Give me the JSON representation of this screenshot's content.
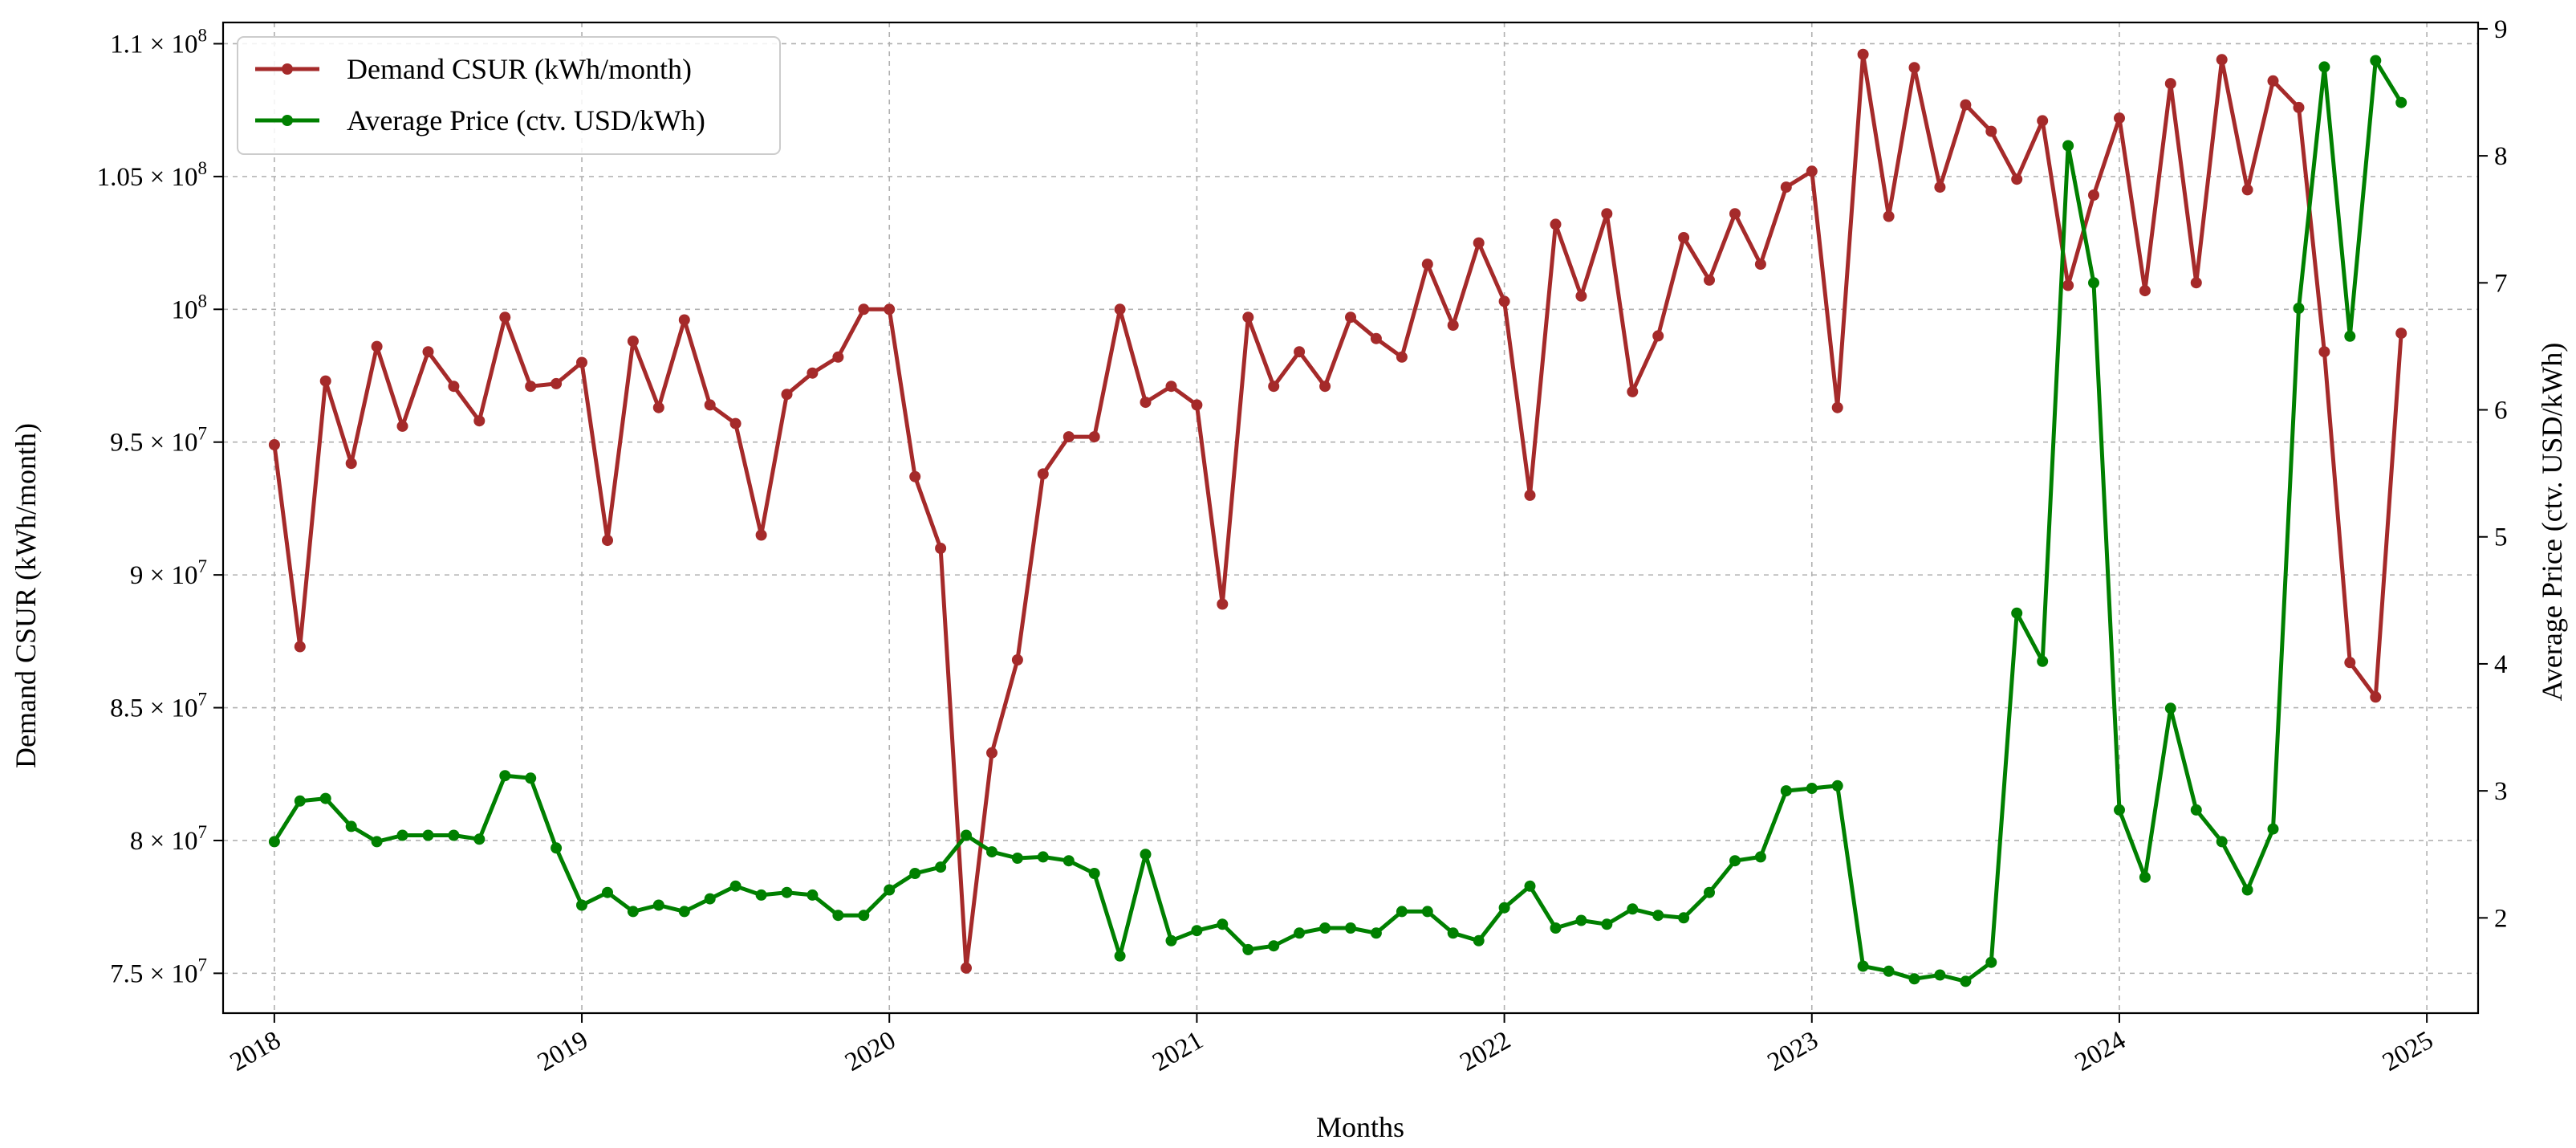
{
  "chart_data": {
    "type": "line",
    "xlabel": "Months",
    "ylabel": "Demand CSUR (kWh/month)",
    "ylabel_right": "Average Price (ctv. USD/kWh)",
    "grid": true,
    "legend_position": "top-left",
    "x_ticks": [
      "2018",
      "2019",
      "2020",
      "2021",
      "2022",
      "2023",
      "2024",
      "2025"
    ],
    "x_start": "2018-01",
    "x_end": "2024-12",
    "xlim_months": [
      -2,
      86
    ],
    "y_left_ticks": [
      {
        "value": 75000000,
        "mantissa": "7.5",
        "exp": "7"
      },
      {
        "value": 80000000,
        "mantissa": "8",
        "exp": "7"
      },
      {
        "value": 85000000,
        "mantissa": "8.5",
        "exp": "7"
      },
      {
        "value": 90000000,
        "mantissa": "9",
        "exp": "7"
      },
      {
        "value": 95000000,
        "mantissa": "9.5",
        "exp": "7"
      },
      {
        "value": 100000000,
        "mantissa": "",
        "exp": "8"
      },
      {
        "value": 105000000,
        "mantissa": "1.05",
        "exp": "8"
      },
      {
        "value": 110000000,
        "mantissa": "1.1",
        "exp": "8"
      }
    ],
    "ylim_left": [
      73500000,
      110800000
    ],
    "y_right_ticks": [
      "2",
      "3",
      "4",
      "5",
      "6",
      "7",
      "8",
      "9"
    ],
    "ylim_right": [
      1.25,
      9.05
    ],
    "series": [
      {
        "name": "Demand CSUR (kWh/month)",
        "axis": "left",
        "color": "#a52a2a",
        "values": [
          94900000,
          87300000,
          97300000,
          94200000,
          98600000,
          95600000,
          98400000,
          97100000,
          95800000,
          99700000,
          97100000,
          97200000,
          98000000,
          91300000,
          98800000,
          96300000,
          99600000,
          96400000,
          95700000,
          91500000,
          96800000,
          97600000,
          98200000,
          100000000,
          100000000,
          93700000,
          91000000,
          75200000,
          83300000,
          86800000,
          93800000,
          95200000,
          95200000,
          100000000,
          96500000,
          97100000,
          96400000,
          88900000,
          99700000,
          97100000,
          98400000,
          97100000,
          99700000,
          98900000,
          98200000,
          101700000,
          99400000,
          102500000,
          100300000,
          93000000,
          103200000,
          100500000,
          103600000,
          96900000,
          99000000,
          102700000,
          101100000,
          103600000,
          101700000,
          104600000,
          105200000,
          96300000,
          109600000,
          103500000,
          109100000,
          104600000,
          107700000,
          106700000,
          104900000,
          107100000,
          100900000,
          104300000,
          107200000,
          100700000,
          108500000,
          101000000,
          109400000,
          104500000,
          108600000,
          107600000,
          98400000,
          86700000,
          85400000,
          99100000
        ]
      },
      {
        "name": "Average Price (ctv. USD/kWh)",
        "axis": "right",
        "color": "#008000",
        "values": [
          2.6,
          2.92,
          2.94,
          2.72,
          2.6,
          2.65,
          2.65,
          2.65,
          2.62,
          3.12,
          3.1,
          2.55,
          2.1,
          2.2,
          2.05,
          2.1,
          2.05,
          2.15,
          2.25,
          2.18,
          2.2,
          2.18,
          2.02,
          2.02,
          2.22,
          2.35,
          2.4,
          2.65,
          2.52,
          2.47,
          2.48,
          2.45,
          2.35,
          1.7,
          2.5,
          1.82,
          1.9,
          1.95,
          1.75,
          1.78,
          1.88,
          1.92,
          1.92,
          1.88,
          2.05,
          2.05,
          1.88,
          1.82,
          2.08,
          2.25,
          1.92,
          1.98,
          1.95,
          2.07,
          2.02,
          2.0,
          2.2,
          2.45,
          2.48,
          3.0,
          3.02,
          3.04,
          1.62,
          1.58,
          1.52,
          1.55,
          1.5,
          1.65,
          4.4,
          4.02,
          8.08,
          7.0,
          2.85,
          2.32,
          3.65,
          2.85,
          2.6,
          2.22,
          2.7,
          6.8,
          8.7,
          6.58,
          8.75,
          8.42
        ]
      }
    ]
  }
}
